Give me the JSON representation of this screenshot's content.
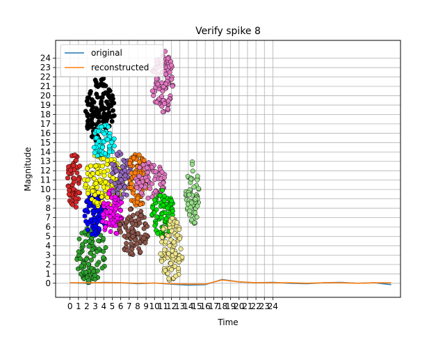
{
  "chart_data": {
    "type": "scatter",
    "title": "Verify spike 8",
    "xlabel": "Time",
    "ylabel": "Magnitude",
    "xlim": [
      -1.7,
      39.1
    ],
    "ylim": [
      -1.5,
      25.9
    ],
    "x_ticks": [
      0,
      1,
      2,
      3,
      4,
      5,
      6,
      7,
      8,
      9,
      10,
      11,
      12,
      13,
      14,
      15,
      16,
      17,
      18,
      19,
      20,
      21,
      22,
      23,
      24
    ],
    "x_tick_labels": [
      "0",
      "1",
      "2",
      "3",
      "4",
      "5",
      "6",
      "7",
      "8",
      "9",
      "10",
      "11",
      "12",
      "13",
      "14",
      "15",
      "16",
      "17",
      "18",
      "19",
      "20",
      "21",
      "22",
      "23",
      "24"
    ],
    "y_ticks": [
      0,
      1,
      2,
      3,
      4,
      5,
      6,
      7,
      8,
      9,
      10,
      11,
      12,
      13,
      14,
      15,
      16,
      17,
      18,
      19,
      20,
      21,
      22,
      23,
      24
    ],
    "y_tick_labels": [
      "0",
      "1",
      "2",
      "3",
      "4",
      "5",
      "6",
      "7",
      "8",
      "9",
      "10",
      "11",
      "12",
      "13",
      "14",
      "15",
      "16",
      "17",
      "18",
      "19",
      "20",
      "21",
      "22",
      "23",
      "24"
    ],
    "grid": true,
    "legend": {
      "position": "top-left",
      "entries": [
        "original",
        "reconstructed"
      ]
    },
    "colors": {
      "original": "#1f77b4",
      "reconstructed": "#ff7f0e"
    },
    "series": [
      {
        "name": "original",
        "color": "#1f77b4",
        "x": [
          0,
          2,
          4,
          6,
          8,
          10,
          12,
          14,
          16,
          18,
          20,
          22,
          24,
          26,
          28,
          30,
          32,
          34,
          36,
          38
        ],
        "values": [
          0.05,
          0.0,
          0.1,
          0.05,
          -0.05,
          0.02,
          -0.1,
          -0.2,
          -0.15,
          0.4,
          0.15,
          0.05,
          0.1,
          0.0,
          -0.05,
          0.05,
          0.1,
          0.0,
          0.05,
          -0.15
        ]
      },
      {
        "name": "reconstructed",
        "color": "#ff7f0e",
        "x": [
          0,
          2,
          4,
          6,
          8,
          10,
          12,
          14,
          16,
          18,
          20,
          22,
          24,
          26,
          28,
          30,
          32,
          34,
          36,
          38
        ],
        "values": [
          0.05,
          0.05,
          0.05,
          0.05,
          0.0,
          0.02,
          -0.05,
          -0.1,
          -0.1,
          0.35,
          0.15,
          0.05,
          0.05,
          0.05,
          0.0,
          0.05,
          0.05,
          0.0,
          0.05,
          0.05
        ]
      }
    ],
    "scatter_clusters": [
      {
        "color": "#d62728",
        "x": [
          0,
          1
        ],
        "y": [
          8.0,
          14.0
        ]
      },
      {
        "color": "#2ca02c",
        "x": [
          1,
          4
        ],
        "y": [
          0.0,
          6.0
        ]
      },
      {
        "color": "#0000ff",
        "x": [
          2,
          4
        ],
        "y": [
          5.0,
          10.0
        ]
      },
      {
        "color": "#ffff00",
        "x": [
          2,
          6
        ],
        "y": [
          8.0,
          14.0
        ]
      },
      {
        "color": "#000000",
        "x": [
          2,
          5
        ],
        "y": [
          15.0,
          22.0
        ]
      },
      {
        "color": "#00ffff",
        "x": [
          3,
          5
        ],
        "y": [
          13.0,
          17.0
        ]
      },
      {
        "color": "#ff00ff",
        "x": [
          4,
          6
        ],
        "y": [
          5.0,
          10.0
        ]
      },
      {
        "color": "#9467bd",
        "x": [
          5,
          7
        ],
        "y": [
          9.0,
          14.0
        ]
      },
      {
        "color": "#ff7f0e",
        "x": [
          7,
          9
        ],
        "y": [
          8.0,
          14.0
        ]
      },
      {
        "color": "#8c564b",
        "x": [
          6,
          9
        ],
        "y": [
          3.0,
          8.0
        ]
      },
      {
        "color": "#e377c2",
        "x": [
          8,
          11
        ],
        "y": [
          9.0,
          13.0
        ]
      },
      {
        "color": "#e377c2",
        "x": [
          10,
          12
        ],
        "y": [
          18.0,
          25.0
        ]
      },
      {
        "color": "#00dd00",
        "x": [
          10,
          12
        ],
        "y": [
          5.0,
          10.0
        ]
      },
      {
        "color": "#f0e68c",
        "x": [
          11,
          13
        ],
        "y": [
          0.0,
          7.0
        ]
      },
      {
        "color": "#98df8a",
        "x": [
          14,
          15
        ],
        "y": [
          6.0,
          13.0
        ]
      }
    ]
  }
}
